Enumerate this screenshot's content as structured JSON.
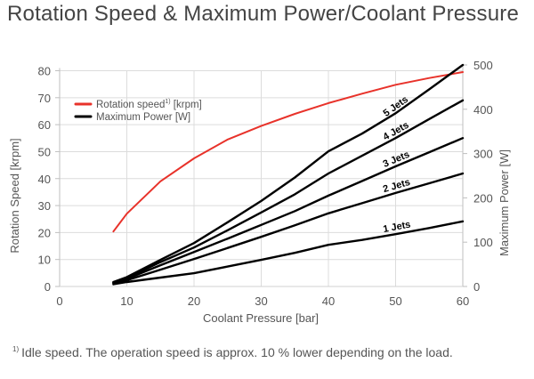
{
  "title": "Rotation Speed & Maximum Power/Coolant Pressure",
  "footnote": {
    "marker": "1)",
    "text": "Idle speed. The operation speed is approx. 10 % lower depending on the load."
  },
  "chart_data": {
    "type": "line",
    "title": "Rotation Speed & Maximum Power/Coolant Pressure",
    "xlabel": "Coolant Pressure [bar]",
    "ylabel": "Rotation Speed [krpm]",
    "y2label": "Maximum Power [W]",
    "xlim": [
      0,
      60
    ],
    "ylim": [
      0,
      80
    ],
    "y2lim": [
      0,
      500
    ],
    "xticks": [
      0,
      10,
      20,
      30,
      40,
      50,
      60
    ],
    "yticks": [
      0,
      10,
      20,
      30,
      40,
      50,
      60,
      70,
      80
    ],
    "y2ticks": [
      0,
      100,
      200,
      300,
      400,
      500
    ],
    "grid": true,
    "legend": {
      "placement": "top-left",
      "entries": [
        {
          "label": "Rotation speed",
          "superscript": "1)",
          "suffix": " [krpm]",
          "color": "#e8322a"
        },
        {
          "label": "Maximum Power [W]",
          "superscript": "",
          "suffix": "",
          "color": "#000000"
        }
      ]
    },
    "series": [
      {
        "name": "Rotation speed [krpm]",
        "axis": "left",
        "color": "#e8322a",
        "x": [
          8,
          10,
          15,
          20,
          25,
          30,
          35,
          40,
          45,
          50,
          55,
          60
        ],
        "values": [
          20.4,
          27,
          39,
          47.5,
          54.5,
          59.5,
          64,
          68,
          71.5,
          74.8,
          77.3,
          79.5
        ]
      },
      {
        "name": "1 Jets",
        "axis": "right",
        "color": "#000000",
        "label": "1 Jets",
        "x": [
          8,
          10,
          15,
          20,
          25,
          30,
          35,
          40,
          45,
          50,
          55,
          60
        ],
        "values": [
          5,
          10,
          20,
          30,
          45,
          60,
          76,
          94,
          105,
          118,
          132,
          147
        ]
      },
      {
        "name": "2 Jets",
        "axis": "right",
        "color": "#000000",
        "label": "2 Jets",
        "x": [
          8,
          10,
          15,
          20,
          25,
          30,
          35,
          40,
          45,
          50,
          55,
          60
        ],
        "values": [
          7,
          14,
          38,
          62,
          87,
          112,
          138,
          165,
          188,
          211,
          233,
          255
        ]
      },
      {
        "name": "3 Jets",
        "axis": "right",
        "color": "#000000",
        "label": "3 Jets",
        "x": [
          8,
          10,
          15,
          20,
          25,
          30,
          35,
          40,
          45,
          50,
          55,
          60
        ],
        "values": [
          8,
          17,
          48,
          78,
          108,
          139,
          170,
          205,
          238,
          271,
          303,
          335
        ]
      },
      {
        "name": "4 Jets",
        "axis": "right",
        "color": "#000000",
        "label": "4 Jets",
        "x": [
          8,
          10,
          15,
          20,
          25,
          30,
          35,
          40,
          45,
          50,
          55,
          60
        ],
        "values": [
          9,
          19,
          55,
          88,
          127,
          167,
          208,
          255,
          295,
          335,
          378,
          420
        ]
      },
      {
        "name": "5 Jets",
        "axis": "right",
        "color": "#000000",
        "label": "5 Jets",
        "x": [
          8,
          10,
          15,
          20,
          25,
          30,
          35,
          40,
          45,
          50,
          55,
          60
        ],
        "values": [
          10,
          21,
          60,
          98,
          145,
          193,
          246,
          305,
          345,
          391,
          445,
          500
        ]
      }
    ]
  }
}
